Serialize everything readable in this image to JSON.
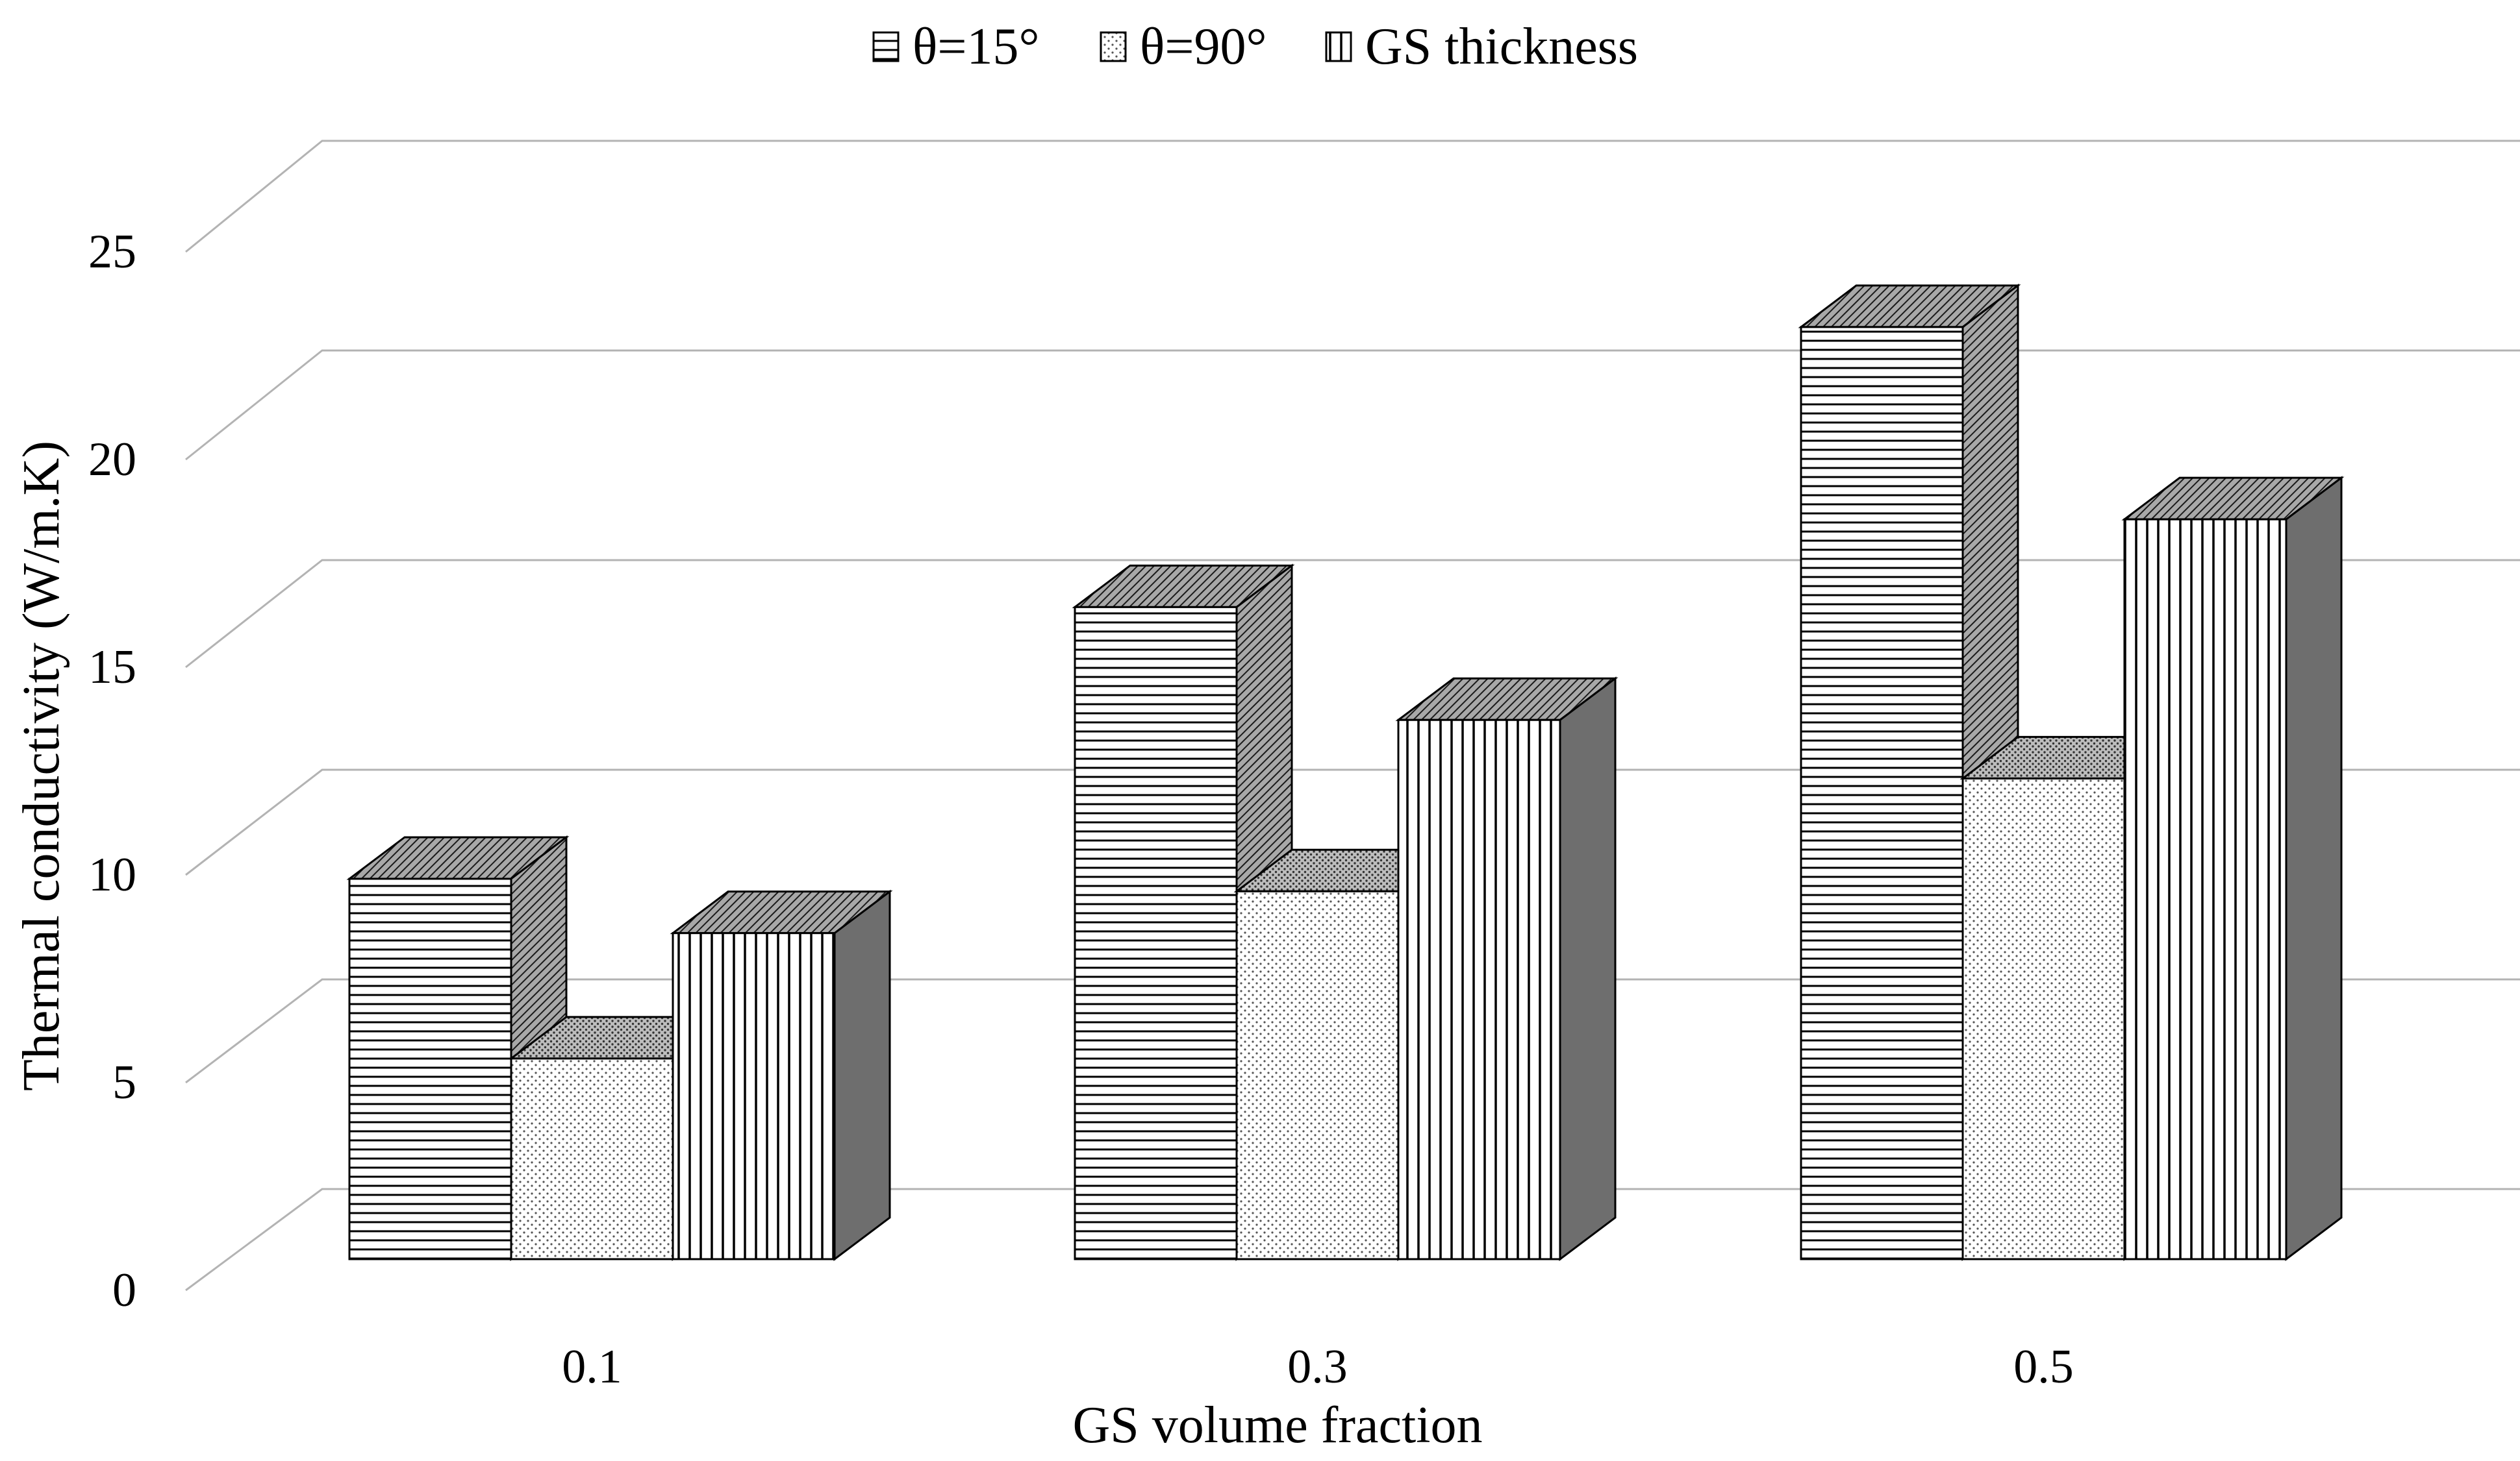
{
  "chart_data": {
    "type": "bar",
    "categories": [
      "0.1",
      "0.3",
      "0.5"
    ],
    "series": [
      {
        "name": "θ=15°",
        "values": [
          9.1,
          15.6,
          22.3
        ],
        "pattern": "horizontal-lines"
      },
      {
        "name": "θ=90°",
        "values": [
          4.8,
          8.8,
          11.5
        ],
        "pattern": "dots"
      },
      {
        "name": "GS thickness",
        "values": [
          7.8,
          12.9,
          17.7
        ],
        "pattern": "vertical-lines"
      }
    ],
    "title": "",
    "xlabel": "GS volume fraction",
    "ylabel": "Thermal conductivity (W/m.K)",
    "ylim": [
      0,
      25
    ],
    "yticks": [
      "0",
      "5",
      "10",
      "15",
      "20",
      "25"
    ],
    "grid": true,
    "legend": "top-center",
    "style": "3d-clustered-column"
  }
}
